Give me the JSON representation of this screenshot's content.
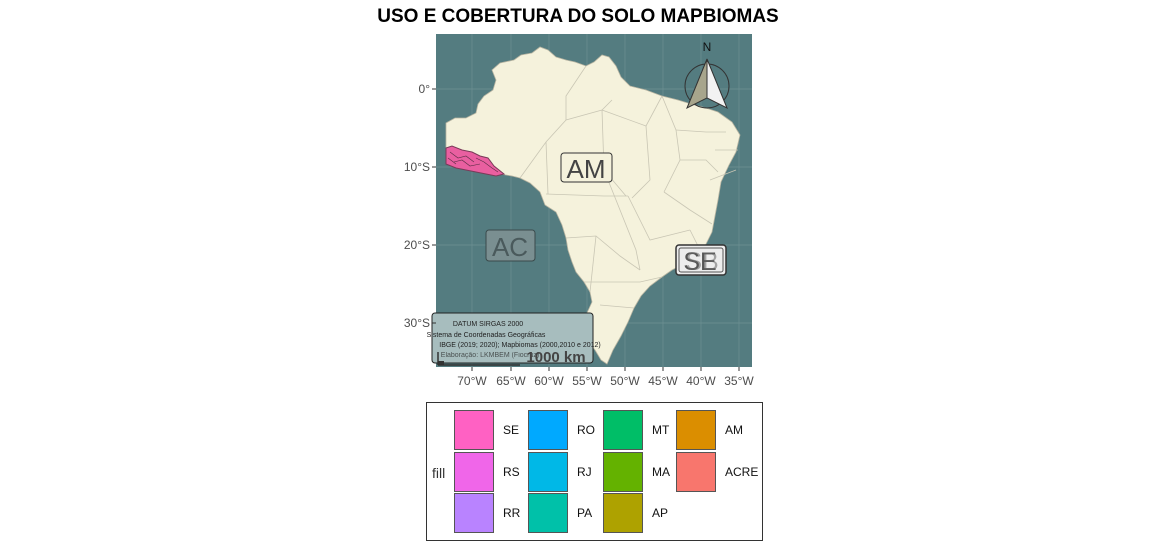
{
  "title": "USO E COBERTURA DO SOLO MAPBIOMAS",
  "colors": {
    "ocean": "#547C80",
    "land": "#F5F2DC",
    "state_border": "#C9C6B4",
    "acre_area": "#E95FA0"
  },
  "map": {
    "y_ticks": [
      "0°",
      "10°S",
      "20°S",
      "30°S"
    ],
    "x_ticks": [
      "70°W",
      "65°W",
      "60°W",
      "55°W",
      "50°W",
      "45°W",
      "40°W",
      "35°W"
    ],
    "labels": {
      "am": "AM",
      "ac": "AC",
      "se_overlap_1": "SE",
      "se_overlap_2": "SB"
    },
    "north_arrow": {
      "letter": "N"
    },
    "scale_bar": "1000 km",
    "caption_lines": [
      "DATUM SIRGAS 2000",
      "Sistema de Coordenadas Geográficas",
      "IBGE (2019; 2020); Mapbiomas (2000,2010 e 2012)",
      "Elaboração: LKMBEM (Fiocruz)"
    ]
  },
  "legend": {
    "title": "fill",
    "items": [
      {
        "label": "SE",
        "color": "#FF61C3"
      },
      {
        "label": "RS",
        "color": "#F066E9"
      },
      {
        "label": "RR",
        "color": "#B983FF"
      },
      {
        "label": "RO",
        "color": "#00A9FF"
      },
      {
        "label": "RJ",
        "color": "#00B8E7"
      },
      {
        "label": "PA",
        "color": "#00C1A9"
      },
      {
        "label": "MT",
        "color": "#00BE67"
      },
      {
        "label": "MA",
        "color": "#64B200"
      },
      {
        "label": "AP",
        "color": "#AEA200"
      },
      {
        "label": "AM",
        "color": "#DB8E00"
      },
      {
        "label": "ACRE",
        "color": "#F8766D"
      }
    ]
  }
}
